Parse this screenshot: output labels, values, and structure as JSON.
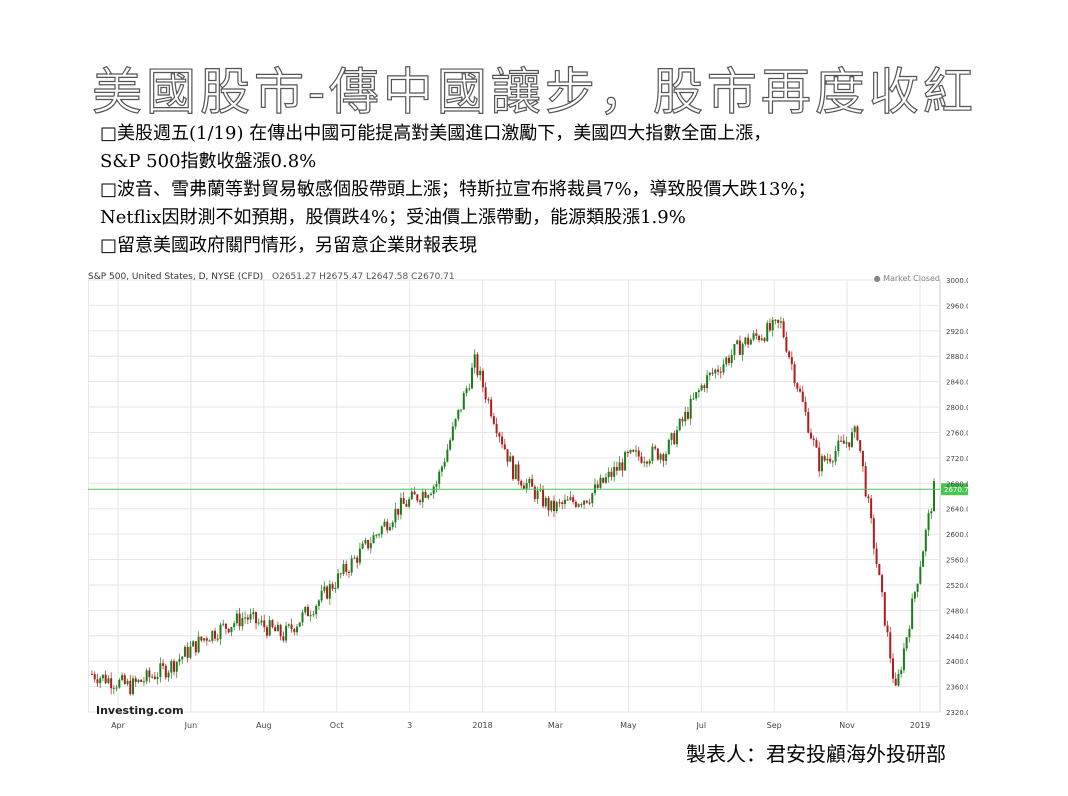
{
  "title": "美國股市-傳中國讓步，股市再度收紅",
  "bullets": [
    "□美股週五(1/19) 在傳出中國可能提高對美國進口激勵下，美國四大指數全面上漲，",
    "S&P 500指數收盤漲0.8%",
    "□波音、雪弗蘭等對貿易敏感個股帶頭上漲；特斯拉宣布將裁員7%，導致股價大跌13%；",
    "Netflix因財測不如預期，股價跌4%；受油價上漲帶動，能源類股漲1.9%",
    "□留意美國政府關門情形，另留意企業財報表現"
  ],
  "chart_header": {
    "instrument": "S&P 500, United States, D, NYSE (CFD)",
    "ohlc": "O2651.27  H2675.47  L2647.58  C2670.71",
    "market_status": "● Market Closed",
    "watermark": "Investing.com",
    "price_tag": "2670.71"
  },
  "footer": "製表人：君安投顧海外投研部",
  "colors": {
    "up": "#1a7d1a",
    "down": "#b31a1a",
    "price_line": "#49c84f",
    "grid": "#e6e6e6"
  },
  "chart_data": {
    "type": "candlestick",
    "title": "S&P 500, United States, D, NYSE (CFD)",
    "ylim": [
      2320,
      3000
    ],
    "y_ticks": [
      "2320.00",
      "2360.00",
      "2400.00",
      "2440.00",
      "2480.00",
      "2520.00",
      "2560.00",
      "2600.00",
      "2640.00",
      "2680.00",
      "2720.00",
      "2760.00",
      "2800.00",
      "2840.00",
      "2880.00",
      "2920.00",
      "2960.00",
      "3000.00"
    ],
    "x_ticks": [
      "Apr",
      "Jun",
      "Aug",
      "Oct",
      "3",
      "2018",
      "Mar",
      "May",
      "Jul",
      "Sep",
      "Nov",
      "2019"
    ],
    "last_close": 2670.71,
    "series": [
      {
        "name": "S&P 500",
        "x": [
          "2017-03",
          "2017-04",
          "2017-05",
          "2017-06",
          "2017-07",
          "2017-08",
          "2017-09",
          "2017-10",
          "2017-11",
          "2017-12",
          "2018-01",
          "2018-02",
          "2018-03",
          "2018-04",
          "2018-05",
          "2018-06",
          "2018-07",
          "2018-08",
          "2018-09",
          "2018-10",
          "2018-11",
          "2018-12",
          "2019-01"
        ],
        "values": [
          2380,
          2360,
          2390,
          2440,
          2470,
          2440,
          2500,
          2570,
          2640,
          2680,
          2870,
          2700,
          2640,
          2660,
          2720,
          2730,
          2840,
          2900,
          2930,
          2710,
          2760,
          2350,
          2670
        ]
      }
    ]
  }
}
